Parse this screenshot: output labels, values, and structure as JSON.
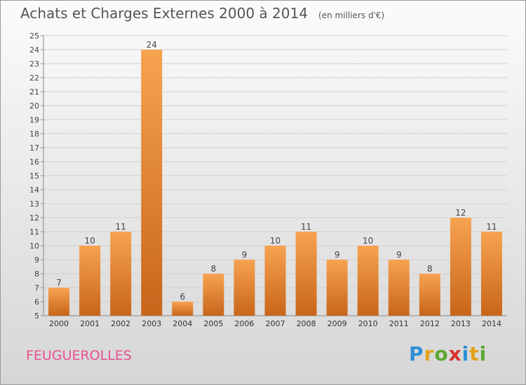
{
  "title": "Achats et Charges Externes 2000 à 2014",
  "unit": "(en milliers d'€)",
  "commune": "FEUGUEROLLES",
  "logo": {
    "text": "Proxiti",
    "letters": [
      {
        "ch": "P",
        "color": "#2f8fd6"
      },
      {
        "ch": "r",
        "color": "#e3a21a"
      },
      {
        "ch": "o",
        "color": "#5aa832"
      },
      {
        "ch": "x",
        "color": "#d9322f"
      },
      {
        "ch": "i",
        "color": "#2f8fd6"
      },
      {
        "ch": "t",
        "color": "#e3a21a"
      },
      {
        "ch": "i",
        "color": "#5aa832"
      }
    ]
  },
  "colors": {
    "bar_light": "#f7a350",
    "bar_dark": "#c7651b",
    "grid": "#d0d0d0",
    "axis": "#888888",
    "title": "#555555",
    "commune": "#e8508e"
  },
  "chart_data": {
    "type": "bar",
    "categories": [
      "2000",
      "2001",
      "2002",
      "2003",
      "2004",
      "2005",
      "2006",
      "2007",
      "2008",
      "2009",
      "2010",
      "2011",
      "2012",
      "2013",
      "2014"
    ],
    "values": [
      7,
      10,
      11,
      24,
      6,
      8,
      9,
      10,
      11,
      9,
      10,
      9,
      8,
      12,
      11
    ],
    "title": "Achats et Charges Externes 2000 à 2014",
    "subtitle": "(en milliers d'€)",
    "xlabel": "",
    "ylabel": "",
    "ylim": [
      5,
      25
    ],
    "ytick_step": 1,
    "grid": true,
    "data_labels": true
  }
}
